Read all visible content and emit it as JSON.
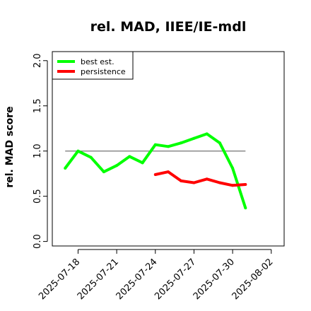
{
  "chart_data": {
    "type": "line",
    "title": "rel. MAD, IIEE/IE-mdl",
    "xlabel": "",
    "ylabel": "rel. MAD score",
    "xlim": [
      "2025-07-16",
      "2025-08-03"
    ],
    "ylim": [
      -0.05,
      2.1
    ],
    "x_ticks": [
      "2025-07-18",
      "2025-07-21",
      "2025-07-24",
      "2025-07-27",
      "2025-07-30",
      "2025-08-02"
    ],
    "y_ticks": [
      "0.0",
      "0.5",
      "1.0",
      "1.5",
      "2.0"
    ],
    "grid": false,
    "legend_position": "top-left",
    "series": [
      {
        "name": "best est.",
        "color": "#00ff00",
        "x": [
          "2025-07-17",
          "2025-07-18",
          "2025-07-19",
          "2025-07-20",
          "2025-07-21",
          "2025-07-22",
          "2025-07-23",
          "2025-07-24",
          "2025-07-25",
          "2025-07-26",
          "2025-07-27",
          "2025-07-28",
          "2025-07-29",
          "2025-07-30",
          "2025-07-31"
        ],
        "values": [
          0.81,
          1.0,
          0.93,
          0.77,
          0.84,
          0.94,
          0.87,
          1.07,
          1.05,
          1.09,
          1.14,
          1.19,
          1.09,
          0.81,
          0.37
        ]
      },
      {
        "name": "persistence",
        "color": "#ff0000",
        "x": [
          "2025-07-24",
          "2025-07-25",
          "2025-07-26",
          "2025-07-27",
          "2025-07-28",
          "2025-07-29",
          "2025-07-30",
          "2025-07-31"
        ],
        "values": [
          0.74,
          0.77,
          0.67,
          0.65,
          0.69,
          0.65,
          0.62,
          0.63
        ]
      }
    ],
    "reference_line": {
      "y": 1.0,
      "x_start": "2025-07-17",
      "x_end": "2025-07-31",
      "color": "#808080"
    }
  }
}
